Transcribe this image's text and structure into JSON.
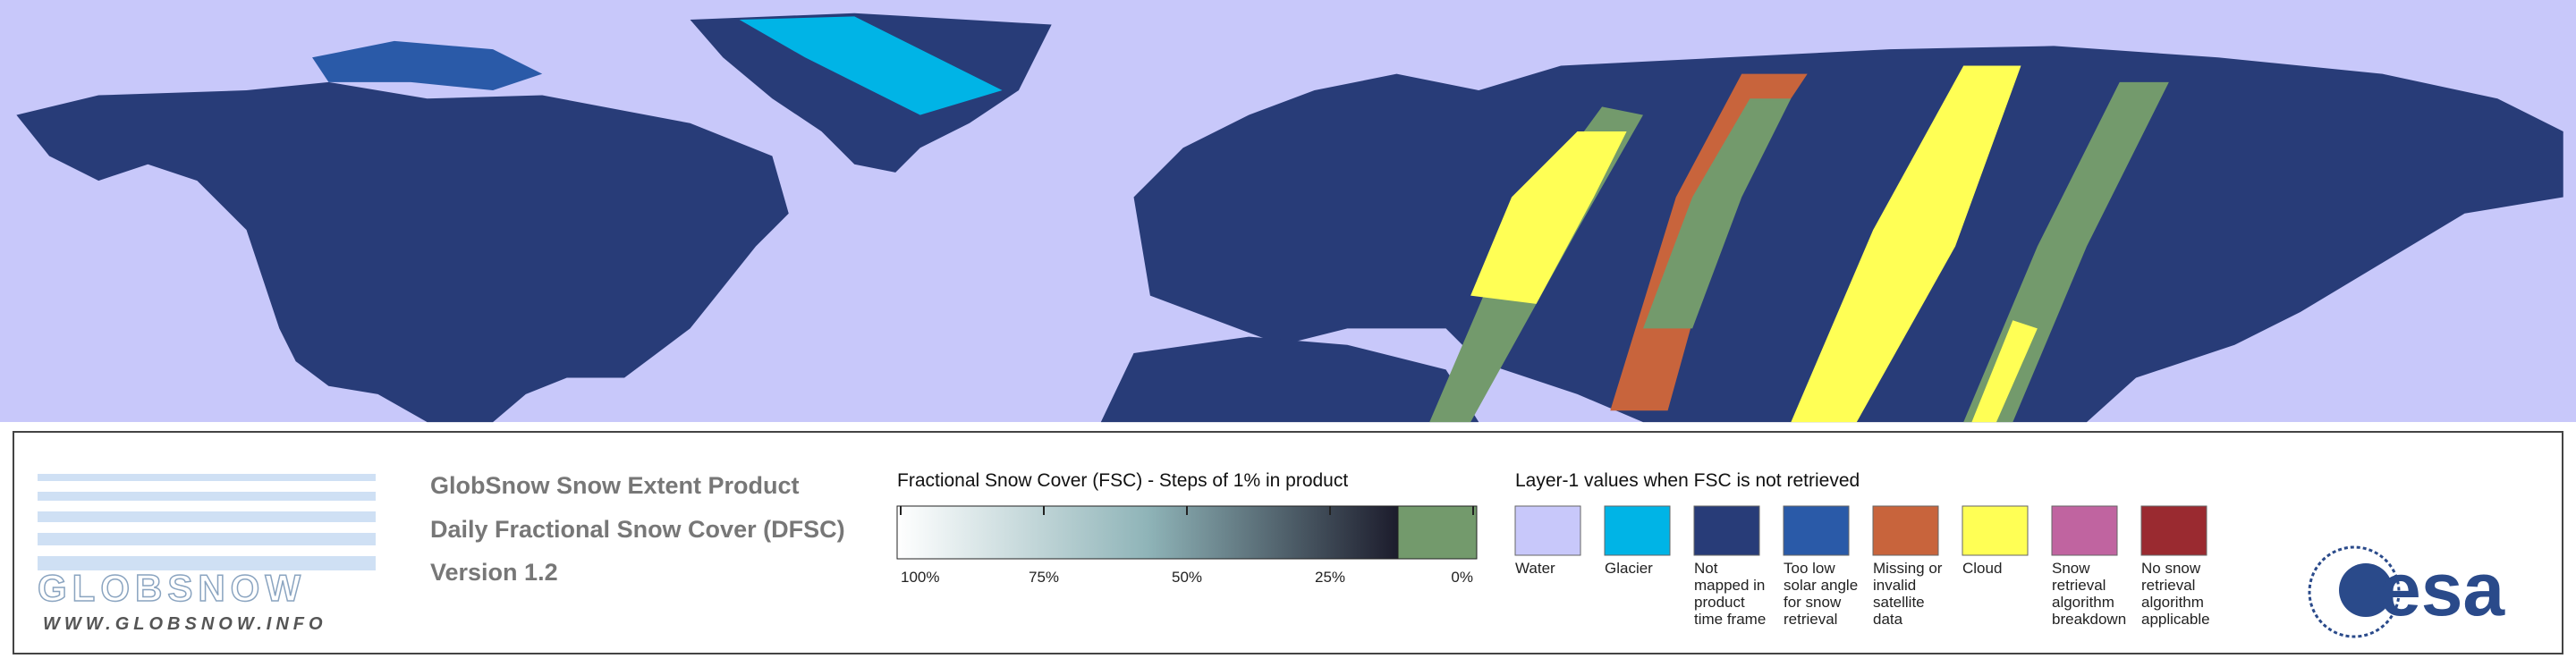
{
  "header": {
    "title": "GlobSnow Snow Extent Product",
    "subtitle": "Daily Fractional Snow Cover (DFSC)",
    "version": "Version 1.2"
  },
  "logo": {
    "name": "GLOBSNOW",
    "url": "WWW.GLOBSNOW.INFO",
    "agency": "esa"
  },
  "colorbar": {
    "title": "Fractional Snow Cover (FSC) - Steps of 1% in product",
    "colors": [
      "#ffffff",
      "#8fb4b8",
      "#1c1c2c"
    ],
    "zero_color": "#739a6c",
    "ticks": [
      {
        "value": 100,
        "label": "100%"
      },
      {
        "value": 75,
        "label": "75%"
      },
      {
        "value": 50,
        "label": "50%"
      },
      {
        "value": 25,
        "label": "25%"
      },
      {
        "value": 0,
        "label": "0%"
      }
    ]
  },
  "legend": {
    "title": "Layer-1 values when FSC is not retrieved",
    "items": [
      {
        "label": "Water",
        "color": "#c8c8fa"
      },
      {
        "label": "Glacier",
        "color": "#00b4e6"
      },
      {
        "label": "Not mapped in product time frame",
        "color": "#283c78"
      },
      {
        "label": "Too low solar angle for snow retrieval",
        "color": "#2a5aa8"
      },
      {
        "label": "Missing or invalid satellite data",
        "color": "#c8643c"
      },
      {
        "label": "Cloud",
        "color": "#ffff55"
      },
      {
        "label": "Snow retrieval algorithm breakdown",
        "color": "#c064a0"
      },
      {
        "label": "No snow retrieval algorithm applicable",
        "color": "#9a2a30"
      }
    ]
  }
}
